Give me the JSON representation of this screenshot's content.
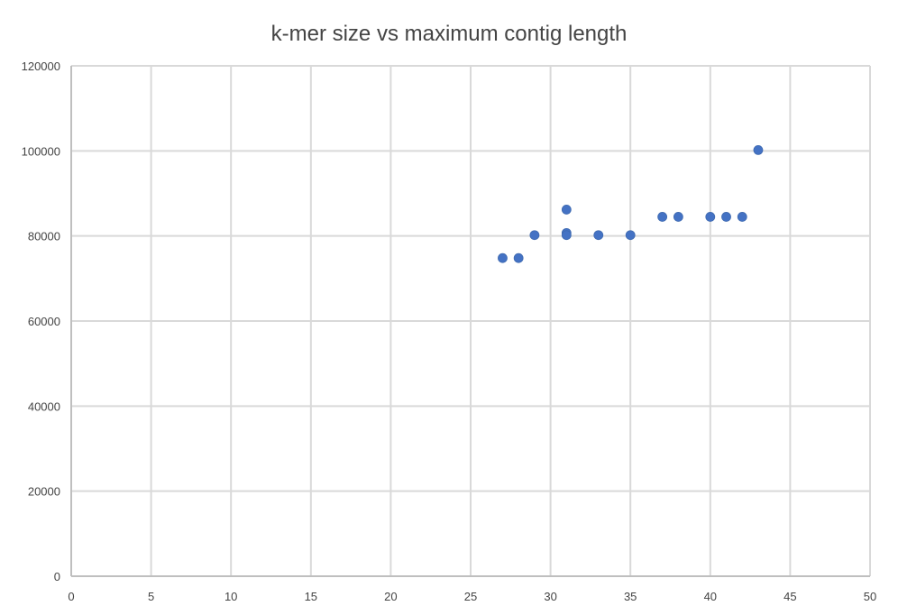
{
  "chart_data": {
    "type": "scatter",
    "title": "k-mer size vs maximum contig length",
    "xlabel": "",
    "ylabel": "",
    "xlim": [
      0,
      50
    ],
    "ylim": [
      0,
      120000
    ],
    "x_ticks": [
      0,
      5,
      10,
      15,
      20,
      25,
      30,
      35,
      40,
      45,
      50
    ],
    "y_ticks": [
      0,
      20000,
      40000,
      60000,
      80000,
      100000,
      120000
    ],
    "grid": true,
    "legend": "none",
    "series": [
      {
        "color": "#4472c4",
        "points": [
          {
            "x": 27,
            "y": 74800
          },
          {
            "x": 28,
            "y": 74800
          },
          {
            "x": 29,
            "y": 80200
          },
          {
            "x": 31,
            "y": 86200
          },
          {
            "x": 31,
            "y": 80700
          },
          {
            "x": 31,
            "y": 80200
          },
          {
            "x": 33,
            "y": 80200
          },
          {
            "x": 35,
            "y": 80200
          },
          {
            "x": 37,
            "y": 84500
          },
          {
            "x": 38,
            "y": 84500
          },
          {
            "x": 40,
            "y": 84500
          },
          {
            "x": 41,
            "y": 84500
          },
          {
            "x": 42,
            "y": 84500
          },
          {
            "x": 43,
            "y": 100200
          }
        ]
      }
    ]
  }
}
